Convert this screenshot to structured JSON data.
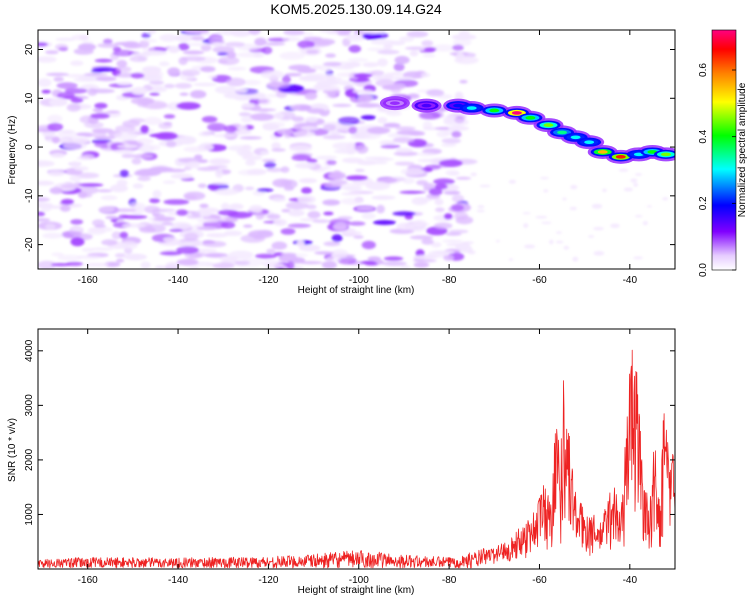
{
  "figure_title": "KOM5.2025.130.09.14.G24",
  "colorbar": {
    "label": "Normalized spectral amplitude",
    "range": [
      0,
      0.72
    ],
    "ticks": [
      {
        "value": 0.0,
        "label": "0.0"
      },
      {
        "value": 0.2,
        "label": "0.2"
      },
      {
        "value": 0.4,
        "label": "0.4"
      },
      {
        "value": 0.6,
        "label": "0.6"
      }
    ],
    "colors": [
      "#ffffff",
      "#e6ccff",
      "#8000ff",
      "#0000ff",
      "#00ffff",
      "#00ff00",
      "#ffff00",
      "#ff8000",
      "#ff0000",
      "#ff0080"
    ]
  },
  "chart_data": [
    {
      "type": "heatmap",
      "title": "KOM5.2025.130.09.14.G24",
      "xlabel": "Height of straight line (km)",
      "ylabel": "Frequency (Hz)",
      "xlim": [
        -171,
        -30
      ],
      "ylim": [
        -25,
        24
      ],
      "x_ticks": [
        {
          "value": -160,
          "label": "-160"
        },
        {
          "value": -140,
          "label": "-140"
        },
        {
          "value": -120,
          "label": "-120"
        },
        {
          "value": -100,
          "label": "-100"
        },
        {
          "value": -80,
          "label": "-80"
        },
        {
          "value": -60,
          "label": "-60"
        },
        {
          "value": -40,
          "label": "-40"
        }
      ],
      "y_ticks": [
        {
          "value": -20,
          "label": "-20"
        },
        {
          "value": -10,
          "label": "-10"
        },
        {
          "value": 0,
          "label": "0"
        },
        {
          "value": 10,
          "label": "10"
        },
        {
          "value": 20,
          "label": "20"
        }
      ],
      "background_noise": {
        "x_range": [
          -171,
          -76
        ],
        "y_range": [
          -25,
          24
        ],
        "typical_amplitude": 0.05
      },
      "ridge": [
        {
          "x": -92,
          "y": 9.0,
          "amplitude": 0.1
        },
        {
          "x": -85,
          "y": 8.5,
          "amplitude": 0.15
        },
        {
          "x": -78,
          "y": 8.5,
          "amplitude": 0.2
        },
        {
          "x": -75,
          "y": 8.0,
          "amplitude": 0.3
        },
        {
          "x": -70,
          "y": 7.5,
          "amplitude": 0.4
        },
        {
          "x": -65,
          "y": 7.0,
          "amplitude": 0.72
        },
        {
          "x": -62,
          "y": 6.0,
          "amplitude": 0.4
        },
        {
          "x": -58,
          "y": 4.5,
          "amplitude": 0.45
        },
        {
          "x": -55,
          "y": 3.0,
          "amplitude": 0.35
        },
        {
          "x": -52,
          "y": 2.0,
          "amplitude": 0.3
        },
        {
          "x": -49,
          "y": 1.0,
          "amplitude": 0.3
        },
        {
          "x": -46,
          "y": -1.0,
          "amplitude": 0.55
        },
        {
          "x": -42,
          "y": -2.0,
          "amplitude": 0.65
        },
        {
          "x": -38,
          "y": -1.5,
          "amplitude": 0.3
        },
        {
          "x": -35,
          "y": -1.0,
          "amplitude": 0.4
        },
        {
          "x": -32,
          "y": -1.5,
          "amplitude": 0.45
        }
      ]
    },
    {
      "type": "line",
      "xlabel": "Height of straight line (km)",
      "ylabel": "SNR (10 * v/v)",
      "xlim": [
        -171,
        -30
      ],
      "ylim": [
        0,
        4400
      ],
      "x_ticks": [
        {
          "value": -160,
          "label": "-160"
        },
        {
          "value": -140,
          "label": "-140"
        },
        {
          "value": -120,
          "label": "-120"
        },
        {
          "value": -100,
          "label": "-100"
        },
        {
          "value": -80,
          "label": "-80"
        },
        {
          "value": -60,
          "label": "-60"
        },
        {
          "value": -40,
          "label": "-40"
        }
      ],
      "y_ticks": [
        {
          "value": 1000,
          "label": "1000"
        },
        {
          "value": 2000,
          "label": "2000"
        },
        {
          "value": 3000,
          "label": "3000"
        },
        {
          "value": 4000,
          "label": "4000"
        }
      ],
      "line_color": "#ee2222",
      "noise_floor": {
        "x_range": [
          -171,
          -75
        ],
        "typical": 130,
        "max": 350
      },
      "envelope": [
        [
          -171,
          140
        ],
        [
          -160,
          180
        ],
        [
          -140,
          170
        ],
        [
          -120,
          190
        ],
        [
          -110,
          230
        ],
        [
          -100,
          300
        ],
        [
          -90,
          220
        ],
        [
          -80,
          180
        ],
        [
          -75,
          260
        ],
        [
          -70,
          400
        ],
        [
          -66,
          600
        ],
        [
          -63,
          900
        ],
        [
          -61,
          1100
        ],
        [
          -59,
          1650
        ],
        [
          -57.5,
          1250
        ],
        [
          -56.2,
          3550
        ],
        [
          -55.5,
          1700
        ],
        [
          -54.6,
          3850
        ],
        [
          -53.5,
          2600
        ],
        [
          -52,
          1400
        ],
        [
          -50,
          1100
        ],
        [
          -48,
          1000
        ],
        [
          -46.5,
          850
        ],
        [
          -45,
          1300
        ],
        [
          -43.5,
          1650
        ],
        [
          -42,
          1000
        ],
        [
          -40.5,
          3100
        ],
        [
          -39.5,
          4350
        ],
        [
          -38.5,
          3800
        ],
        [
          -37.5,
          2400
        ],
        [
          -36,
          1200
        ],
        [
          -34.5,
          2350
        ],
        [
          -33.5,
          1300
        ],
        [
          -32.5,
          3100
        ],
        [
          -31.5,
          2400
        ],
        [
          -30,
          2200
        ]
      ]
    }
  ]
}
